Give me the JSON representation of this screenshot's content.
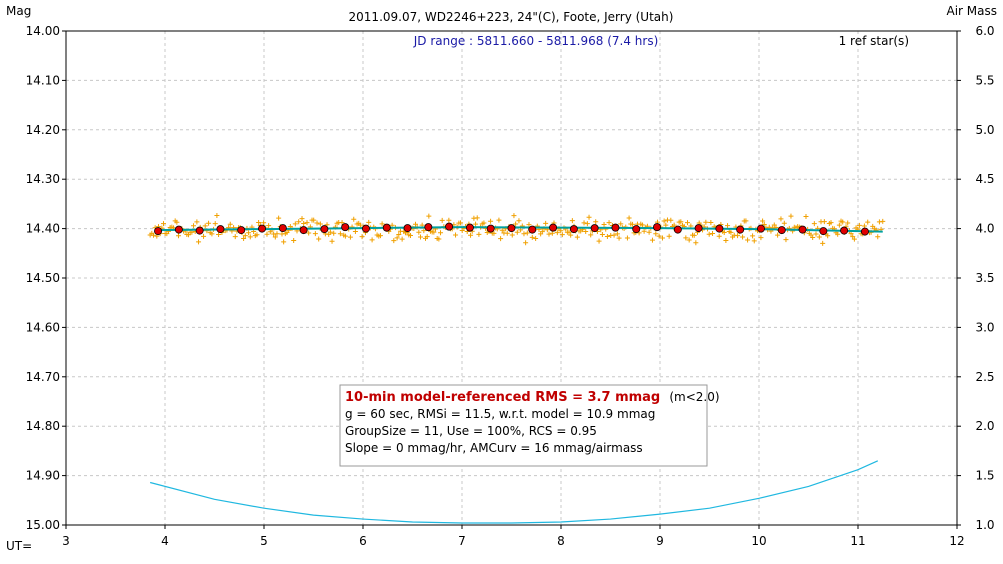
{
  "chart_data": {
    "type": "scatter",
    "title": "2011.09.07, WD2246+223, 24\"(C), Foote, Jerry (Utah)",
    "left_axis_label": "Mag",
    "right_axis_label": "Air Mass",
    "x_axis_label": "UT=",
    "jd_range": "JD range : 5811.660 - 5811.968 (7.4 hrs)",
    "ref_stars": "1 ref star(s)",
    "xlim": [
      3,
      12
    ],
    "ylim_mag": [
      14.0,
      15.0
    ],
    "ylim_airmass": [
      1.0,
      6.0
    ],
    "y_inverted": true,
    "grid": true,
    "x_ticks": [
      "3",
      "4",
      "5",
      "6",
      "7",
      "8",
      "9",
      "10",
      "11",
      "12"
    ],
    "y_ticks_left": [
      "14.00",
      "14.10",
      "14.20",
      "14.30",
      "14.40",
      "14.50",
      "14.60",
      "14.70",
      "14.80",
      "14.90",
      "15.00"
    ],
    "y_ticks_right": [
      "6.0",
      "5.5",
      "5.0",
      "4.5",
      "4.0",
      "3.5",
      "3.0",
      "2.5",
      "2.0",
      "1.5",
      "1.0"
    ],
    "stats": {
      "headline": "10-min model-referenced RMS = 3.7 mmag",
      "headline_suffix": "(m<2.0)",
      "line1": "g = 60 sec, RMSi = 11.5, w.r.t. model = 10.9 mmag",
      "line2": "GroupSize = 11, Use = 100%, RCS = 0.95",
      "line3": "Slope = 0 mmag/hr, AMCurv = 16 mmag/airmass"
    },
    "raw_series": {
      "name": "",
      "color": "#f0a000",
      "x_range": [
        3.85,
        11.25
      ],
      "count": 440,
      "mean_mag": 14.402,
      "scatter_mmag": 11
    },
    "binned_series": {
      "name": "",
      "color": "#e00000",
      "x": [
        3.93,
        4.14,
        4.35,
        4.56,
        4.77,
        4.98,
        5.19,
        5.4,
        5.61,
        5.82,
        6.03,
        6.24,
        6.45,
        6.66,
        6.87,
        7.08,
        7.29,
        7.5,
        7.71,
        7.92,
        8.13,
        8.34,
        8.55,
        8.76,
        8.97,
        9.18,
        9.39,
        9.6,
        9.81,
        10.02,
        10.23,
        10.44,
        10.65,
        10.86,
        11.07
      ],
      "y": [
        14.405,
        14.402,
        14.404,
        14.401,
        14.403,
        14.4,
        14.399,
        14.403,
        14.401,
        14.397,
        14.4,
        14.398,
        14.399,
        14.397,
        14.396,
        14.398,
        14.4,
        14.399,
        14.402,
        14.398,
        14.401,
        14.399,
        14.398,
        14.401,
        14.397,
        14.402,
        14.399,
        14.4,
        14.402,
        14.4,
        14.403,
        14.402,
        14.405,
        14.404,
        14.406
      ]
    },
    "model_line": {
      "color": "#00a0a0",
      "x": [
        3.9,
        5.0,
        6.0,
        7.0,
        8.0,
        9.0,
        10.0,
        11.25
      ],
      "y": [
        14.403,
        14.401,
        14.399,
        14.397,
        14.398,
        14.399,
        14.401,
        14.406
      ]
    },
    "airmass_curve": {
      "color": "#20b8e0",
      "x": [
        3.85,
        4.5,
        5.0,
        5.5,
        6.0,
        6.5,
        7.0,
        7.5,
        8.0,
        8.5,
        9.0,
        9.5,
        10.0,
        10.5,
        11.0,
        11.2
      ],
      "y": [
        1.43,
        1.26,
        1.17,
        1.1,
        1.06,
        1.03,
        1.02,
        1.02,
        1.03,
        1.06,
        1.11,
        1.17,
        1.27,
        1.39,
        1.56,
        1.65
      ]
    }
  }
}
